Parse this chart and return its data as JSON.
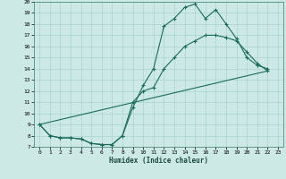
{
  "xlabel": "Humidex (Indice chaleur)",
  "bg_color": "#cce9e5",
  "grid_color": "#aad4cf",
  "line_color": "#1a6b5a",
  "xlim": [
    -0.5,
    23.5
  ],
  "ylim": [
    7,
    20
  ],
  "xticks": [
    0,
    1,
    2,
    3,
    4,
    5,
    6,
    7,
    8,
    9,
    10,
    11,
    12,
    13,
    14,
    15,
    16,
    17,
    18,
    19,
    20,
    21,
    22,
    23
  ],
  "yticks": [
    7,
    8,
    9,
    10,
    11,
    12,
    13,
    14,
    15,
    16,
    17,
    18,
    19,
    20
  ],
  "line1_x": [
    0,
    1,
    2,
    3,
    4,
    5,
    6,
    7,
    8,
    9,
    10,
    11,
    12,
    13,
    14,
    15,
    16,
    17,
    18,
    19,
    20,
    21,
    22
  ],
  "line1_y": [
    9.0,
    8.0,
    7.8,
    7.8,
    7.7,
    7.3,
    7.2,
    7.2,
    8.0,
    10.5,
    12.5,
    14.0,
    17.8,
    18.5,
    19.5,
    19.8,
    18.5,
    19.3,
    18.0,
    16.7,
    15.0,
    14.3,
    14.0
  ],
  "line2_x": [
    0,
    1,
    2,
    3,
    4,
    5,
    6,
    7,
    8,
    9,
    10,
    11,
    12,
    13,
    14,
    15,
    16,
    17,
    18,
    19,
    20,
    21,
    22
  ],
  "line2_y": [
    9.0,
    8.0,
    7.8,
    7.8,
    7.7,
    7.3,
    7.2,
    7.2,
    8.0,
    11.0,
    12.0,
    12.3,
    14.0,
    15.0,
    16.0,
    16.5,
    17.0,
    17.0,
    16.8,
    16.5,
    15.5,
    14.5,
    13.8
  ],
  "line3_x": [
    0,
    22
  ],
  "line3_y": [
    9.0,
    13.8
  ]
}
